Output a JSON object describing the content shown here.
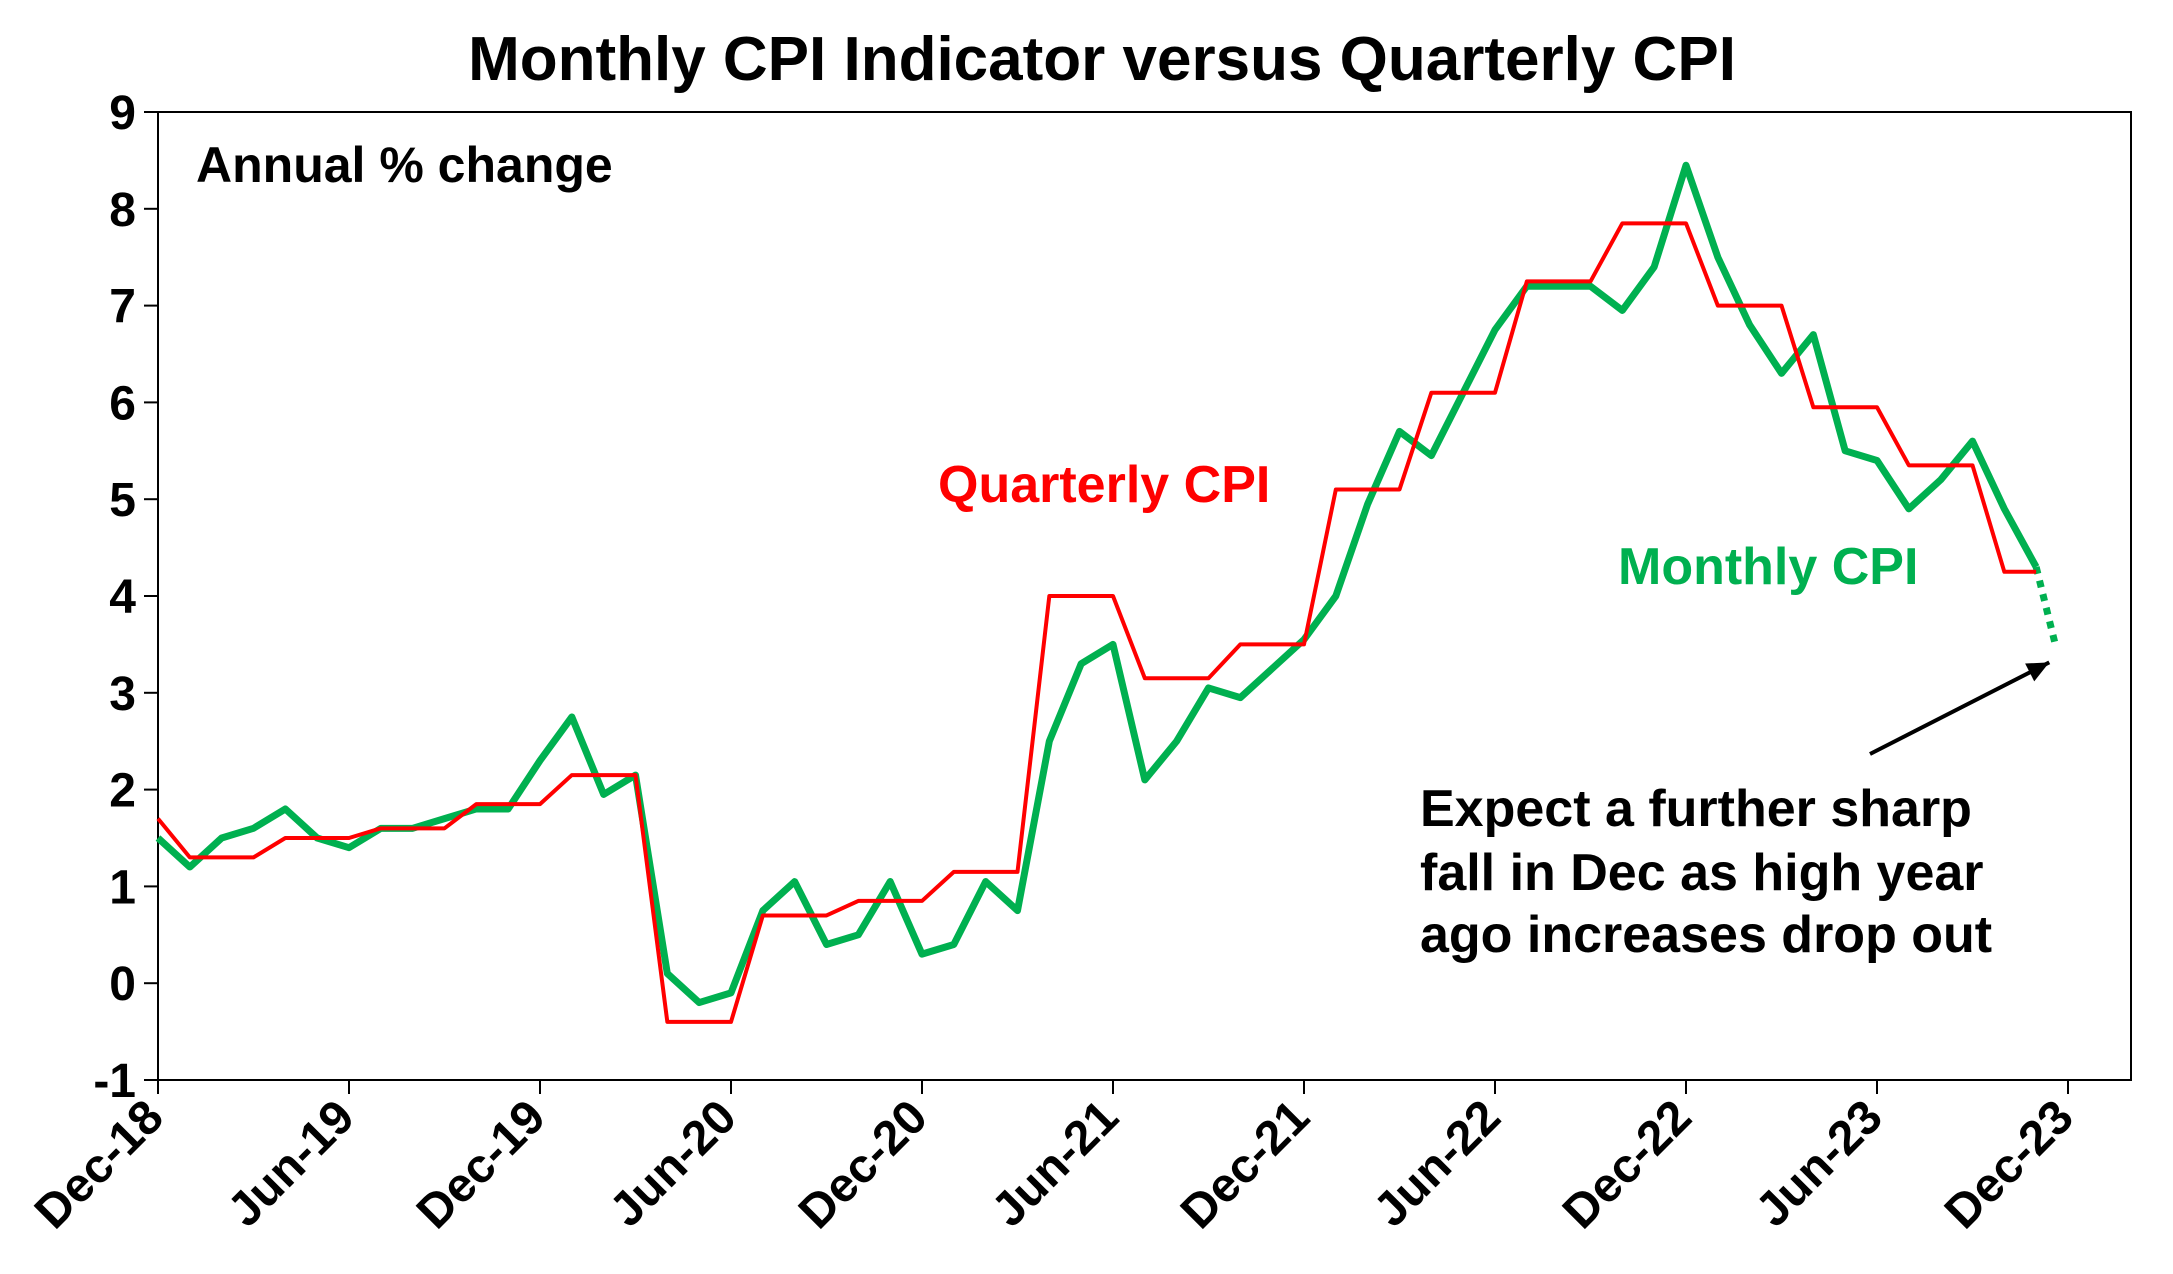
{
  "chart_data": {
    "type": "line",
    "title": "Monthly CPI Indicator versus Quarterly CPI",
    "ylabel": "Annual % change",
    "xlabel": "",
    "ylim": [
      -1,
      9
    ],
    "yticks": [
      -1,
      0,
      1,
      2,
      3,
      4,
      5,
      6,
      7,
      8,
      9
    ],
    "xtick_labels": [
      "Dec-18",
      "Jun-19",
      "Dec-19",
      "Jun-20",
      "Dec-20",
      "Jun-21",
      "Dec-21",
      "Jun-22",
      "Dec-22",
      "Jun-23",
      "Dec-23"
    ],
    "x_start": "Dec-18",
    "x_end": "Dec-23",
    "grid": false,
    "series": [
      {
        "name": "Quarterly CPI",
        "color": "#ff0000",
        "frequency": "monthly, Dec-18 to Nov-23",
        "values": [
          1.7,
          1.3,
          1.3,
          1.3,
          1.5,
          1.5,
          1.5,
          1.6,
          1.6,
          1.6,
          1.85,
          1.85,
          1.85,
          2.15,
          2.15,
          2.15,
          -0.4,
          -0.4,
          -0.4,
          0.7,
          0.7,
          0.7,
          0.85,
          0.85,
          0.85,
          1.15,
          1.15,
          1.15,
          4.0,
          4.0,
          4.0,
          3.15,
          3.15,
          3.15,
          3.5,
          3.5,
          3.5,
          5.1,
          5.1,
          5.1,
          6.1,
          6.1,
          6.1,
          7.25,
          7.25,
          7.25,
          7.85,
          7.85,
          7.85,
          7.0,
          7.0,
          7.0,
          5.95,
          5.95,
          5.95,
          5.35,
          5.35,
          5.35,
          4.25,
          4.25
        ]
      },
      {
        "name": "Monthly CPI",
        "color": "#00b050",
        "frequency": "monthly, Dec-18 to Nov-23",
        "values": [
          1.5,
          1.2,
          1.5,
          1.6,
          1.8,
          1.5,
          1.4,
          1.6,
          1.6,
          1.7,
          1.8,
          1.8,
          2.3,
          2.75,
          1.95,
          2.15,
          0.1,
          -0.2,
          -0.1,
          0.75,
          1.05,
          0.4,
          0.5,
          1.05,
          0.3,
          0.4,
          1.05,
          0.75,
          2.5,
          3.3,
          3.5,
          2.1,
          2.5,
          3.05,
          2.95,
          3.25,
          3.55,
          4.0,
          4.95,
          5.7,
          5.45,
          6.1,
          6.75,
          7.2,
          7.2,
          7.2,
          6.95,
          7.4,
          8.45,
          7.5,
          6.8,
          6.3,
          6.7,
          5.5,
          5.4,
          4.9,
          5.2,
          5.6,
          4.9,
          4.3
        ],
        "forecast": {
          "month": "Dec-23",
          "value": 3.5,
          "style": "dotted"
        }
      }
    ],
    "annotations": [
      {
        "text": "Quarterly CPI",
        "color": "#ff0000"
      },
      {
        "text": "Monthly CPI",
        "color": "#00b050"
      },
      {
        "lines": [
          "Expect a further sharp",
          "fall in Dec as high year",
          "ago increases drop out"
        ],
        "color": "#000000",
        "arrow_to": {
          "month": "Dec-23",
          "value": 3.5
        }
      }
    ]
  }
}
